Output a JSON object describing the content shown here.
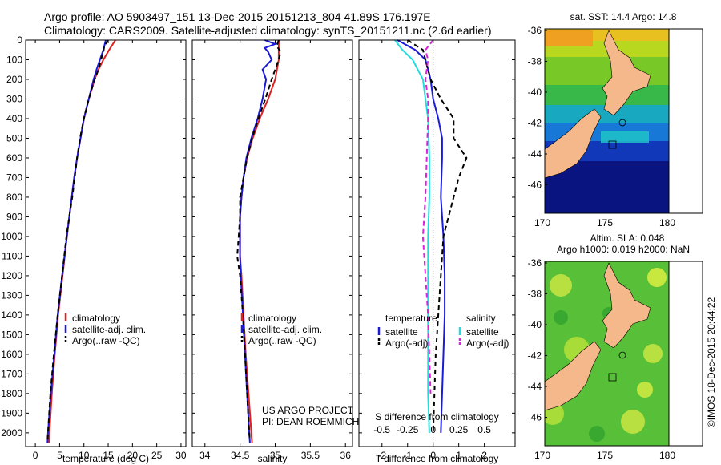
{
  "header": {
    "line1": "Argo profile: AO 5903497_151 13-Dec-2015 20151213_804 41.89S 176.197E",
    "line2": "Climatology: CARS2009. Satellite-adjusted climatology: synTS_20151211.nc (2.6d earlier)"
  },
  "chart_data": [
    {
      "type": "line",
      "id": "temperature",
      "xlabel": "temperature (deg C)",
      "ylabel": "",
      "xlim": [
        -2,
        31
      ],
      "ylim": [
        0,
        2070
      ],
      "xticks": [
        0,
        5,
        10,
        15,
        20,
        25,
        30
      ],
      "yticks": [
        0,
        100,
        200,
        300,
        400,
        500,
        600,
        700,
        800,
        900,
        1000,
        1100,
        1200,
        1300,
        1400,
        1500,
        1600,
        1700,
        1800,
        1900,
        2000
      ],
      "legend": [
        "climatology",
        "satellite-adj. clim.",
        "Argo(..raw -QC)"
      ],
      "legend_position": "lower-right",
      "series": [
        {
          "name": "climatology",
          "color": "#e02020",
          "dash": "",
          "depth": [
            0,
            50,
            100,
            150,
            200,
            300,
            400,
            500,
            600,
            700,
            800,
            900,
            1000,
            1200,
            1400,
            1600,
            1800,
            2000,
            2050
          ],
          "values": [
            16.5,
            15.2,
            14.0,
            13.0,
            12.2,
            11.0,
            10.0,
            9.3,
            8.6,
            8.0,
            7.5,
            7.0,
            6.5,
            5.6,
            4.7,
            4.0,
            3.4,
            2.9,
            2.8
          ]
        },
        {
          "name": "satellite-adj. clim.",
          "color": "#1a1ad8",
          "dash": "",
          "depth": [
            0,
            50,
            100,
            150,
            200,
            300,
            400,
            500,
            600,
            700,
            800,
            900,
            1000,
            1200,
            1400,
            1600,
            1800,
            2000,
            2050
          ],
          "values": [
            14.5,
            14.0,
            13.3,
            12.6,
            12.0,
            11.0,
            10.0,
            9.3,
            8.6,
            8.0,
            7.5,
            7.0,
            6.5,
            5.5,
            4.6,
            3.9,
            3.2,
            2.6,
            2.5
          ]
        },
        {
          "name": "Argo(..raw -QC)",
          "color": "#000000",
          "dash": "6,4",
          "depth": [
            0,
            30,
            60,
            100,
            150,
            200,
            300,
            400,
            500,
            600,
            700,
            800,
            900,
            1000,
            1200,
            1400,
            1600,
            1800,
            2000,
            2040
          ],
          "values": [
            15.0,
            14.2,
            14.0,
            13.5,
            13.0,
            12.2,
            11.0,
            10.0,
            9.2,
            8.6,
            8.1,
            7.6,
            7.0,
            6.4,
            5.5,
            4.6,
            3.8,
            3.1,
            2.6,
            2.5
          ]
        }
      ]
    },
    {
      "type": "line",
      "id": "salinity",
      "xlabel": "salinity",
      "xlim": [
        33.82,
        36.1
      ],
      "ylim": [
        0,
        2070
      ],
      "xticks": [
        34,
        34.5,
        35,
        35.5,
        36
      ],
      "legend": [
        "climatology",
        "satellite-adj. clim.",
        "Argo(..raw -QC)"
      ],
      "legend_position": "lower-right",
      "annotation": [
        "US ARGO PROJECT",
        "PI: DEAN ROEMMICH"
      ],
      "series": [
        {
          "name": "climatology",
          "color": "#e02020",
          "dash": "",
          "depth": [
            0,
            100,
            200,
            300,
            400,
            500,
            600,
            700,
            800,
            900,
            1000,
            1100,
            1200,
            1400,
            1600,
            1800,
            2000,
            2050
          ],
          "values": [
            35.05,
            35.05,
            35.0,
            34.9,
            34.78,
            34.68,
            34.6,
            34.55,
            34.52,
            34.5,
            34.5,
            34.5,
            34.52,
            34.55,
            34.58,
            34.62,
            34.66,
            34.67
          ]
        },
        {
          "name": "satellite-adj. clim.",
          "color": "#1a1ad8",
          "dash": "",
          "depth": [
            0,
            20,
            40,
            60,
            100,
            150,
            200,
            300,
            400,
            500,
            600,
            700,
            800,
            900,
            1000,
            1100,
            1200,
            1400,
            1600,
            1800,
            2000,
            2050
          ],
          "values": [
            34.85,
            35.0,
            34.85,
            34.9,
            34.95,
            34.82,
            34.87,
            34.82,
            34.75,
            34.66,
            34.59,
            34.55,
            34.52,
            34.5,
            34.5,
            34.5,
            34.51,
            34.54,
            34.57,
            34.6,
            34.63,
            34.64
          ]
        },
        {
          "name": "Argo(..raw -QC)",
          "color": "#000000",
          "dash": "6,4",
          "depth": [
            0,
            30,
            60,
            100,
            150,
            200,
            300,
            400,
            500,
            600,
            700,
            800,
            900,
            1000,
            1100,
            1200,
            1400,
            1600,
            1800,
            2000,
            2040
          ],
          "values": [
            35.05,
            35.02,
            35.08,
            35.05,
            35.0,
            34.95,
            34.86,
            34.76,
            34.67,
            34.6,
            34.55,
            34.5,
            34.5,
            34.48,
            34.46,
            34.5,
            34.54,
            34.57,
            34.6,
            34.63,
            34.64
          ]
        }
      ]
    },
    {
      "type": "line",
      "id": "differences",
      "xlabel": "T difference from climatology",
      "xlabel_top": "S difference from climatology",
      "xlim": [
        -2.9,
        3.2
      ],
      "ylim": [
        0,
        2070
      ],
      "xticks": [
        -2,
        -1,
        0,
        1,
        2
      ],
      "xticks_s": [
        "-0.5",
        "-0.25",
        "0",
        "0.25",
        "0.5"
      ],
      "xticks_s_pos": [
        -2,
        -1,
        0,
        1,
        2
      ],
      "legend_groups": [
        {
          "title": "temperature",
          "items": [
            "satellite",
            "Argo(-adj)"
          ]
        },
        {
          "title": "salinity",
          "items": [
            "satellite",
            "Argo(-adj)"
          ]
        }
      ],
      "series": [
        {
          "name": "temperature satellite",
          "color": "#1a1ad8",
          "dash": "",
          "depth": [
            0,
            50,
            100,
            150,
            200,
            300,
            400,
            500,
            600,
            800,
            1000,
            1200,
            1400,
            1600,
            1800,
            2000
          ],
          "values": [
            -1.4,
            -0.7,
            -0.3,
            -0.2,
            -0.1,
            0.0,
            0.2,
            0.35,
            0.35,
            0.3,
            0.4,
            0.45,
            0.45,
            0.4,
            0.35,
            0.3
          ]
        },
        {
          "name": "temperature Argo(-adj)",
          "color": "#000000",
          "dash": "6,4",
          "depth": [
            0,
            50,
            100,
            200,
            300,
            400,
            500,
            600,
            700,
            800,
            900,
            1000,
            1200,
            1400,
            1600,
            1800,
            2000
          ],
          "values": [
            -1.0,
            -0.4,
            -0.3,
            -0.1,
            0.3,
            0.8,
            0.8,
            1.3,
            1.0,
            0.8,
            0.6,
            0.4,
            0.3,
            0.2,
            0.1,
            0.05,
            0.0
          ]
        },
        {
          "name": "salinity satellite",
          "color": "#22dddd",
          "dash": "",
          "depth": [
            0,
            50,
            100,
            200,
            300,
            400,
            600,
            800,
            1000,
            1200,
            1400,
            1600,
            1800,
            2000
          ],
          "values": [
            -1.5,
            -1.2,
            -0.8,
            -0.4,
            -0.3,
            -0.2,
            -0.15,
            -0.15,
            -0.2,
            -0.2,
            -0.2,
            -0.2,
            -0.2,
            -0.15
          ]
        },
        {
          "name": "salinity Argo(-adj)",
          "color": "#dd22dd",
          "dash": "6,4",
          "depth": [
            0,
            50,
            100,
            200,
            300,
            400,
            600,
            800,
            1000,
            1100,
            1200,
            1400,
            1600,
            1800
          ],
          "values": [
            0.0,
            -0.3,
            -0.2,
            -0.3,
            -0.2,
            -0.2,
            -0.25,
            -0.3,
            -0.4,
            -0.35,
            -0.3,
            -0.2,
            -0.15,
            -0.1
          ]
        }
      ]
    }
  ],
  "maps": {
    "sst": {
      "title": "sat. SST: 14.4  Argo: 14.8"
    },
    "sla": {
      "title1": "Altim. SLA: 0.048",
      "title2": "Argo h1000: 0.019 h2000: NaN"
    },
    "yticks": [
      "-36",
      "-38",
      "-40",
      "-42",
      "-44",
      "-46"
    ],
    "xticks": [
      "170",
      "175",
      "180"
    ],
    "land_color": "#f5b88a"
  },
  "credit": "©IMOS 18-Dec-2015 20:44:22",
  "colors": {
    "climatology": "#e02020",
    "satellite": "#1a1ad8",
    "argo": "#000000",
    "sal_sat": "#22dddd",
    "sal_argo": "#dd22dd"
  }
}
